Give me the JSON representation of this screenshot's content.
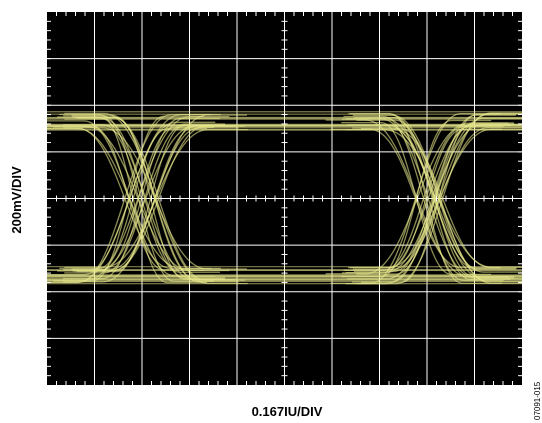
{
  "chart_data": {
    "type": "line",
    "title": "",
    "xlabel": "0.167IU/DIV",
    "ylabel": "200mV/DIV",
    "figure_code": "07091-015",
    "x_divisions": 10,
    "y_divisions": 8,
    "xlim": [
      0,
      1.67
    ],
    "ylim": [
      -800,
      800
    ],
    "x_unit": "UI",
    "y_unit": "mV",
    "grid": true,
    "background_color": "#000000",
    "grid_color": "#ffffff",
    "trace_color": "#e8e88c",
    "eye": {
      "high_level_mV": [
        300,
        360
      ],
      "low_level_mV": [
        -300,
        -360
      ],
      "crossings_ui": [
        0.333,
        1.333
      ],
      "unit_interval_ui": 1.0
    },
    "series": [
      {
        "values": []
      }
    ]
  }
}
